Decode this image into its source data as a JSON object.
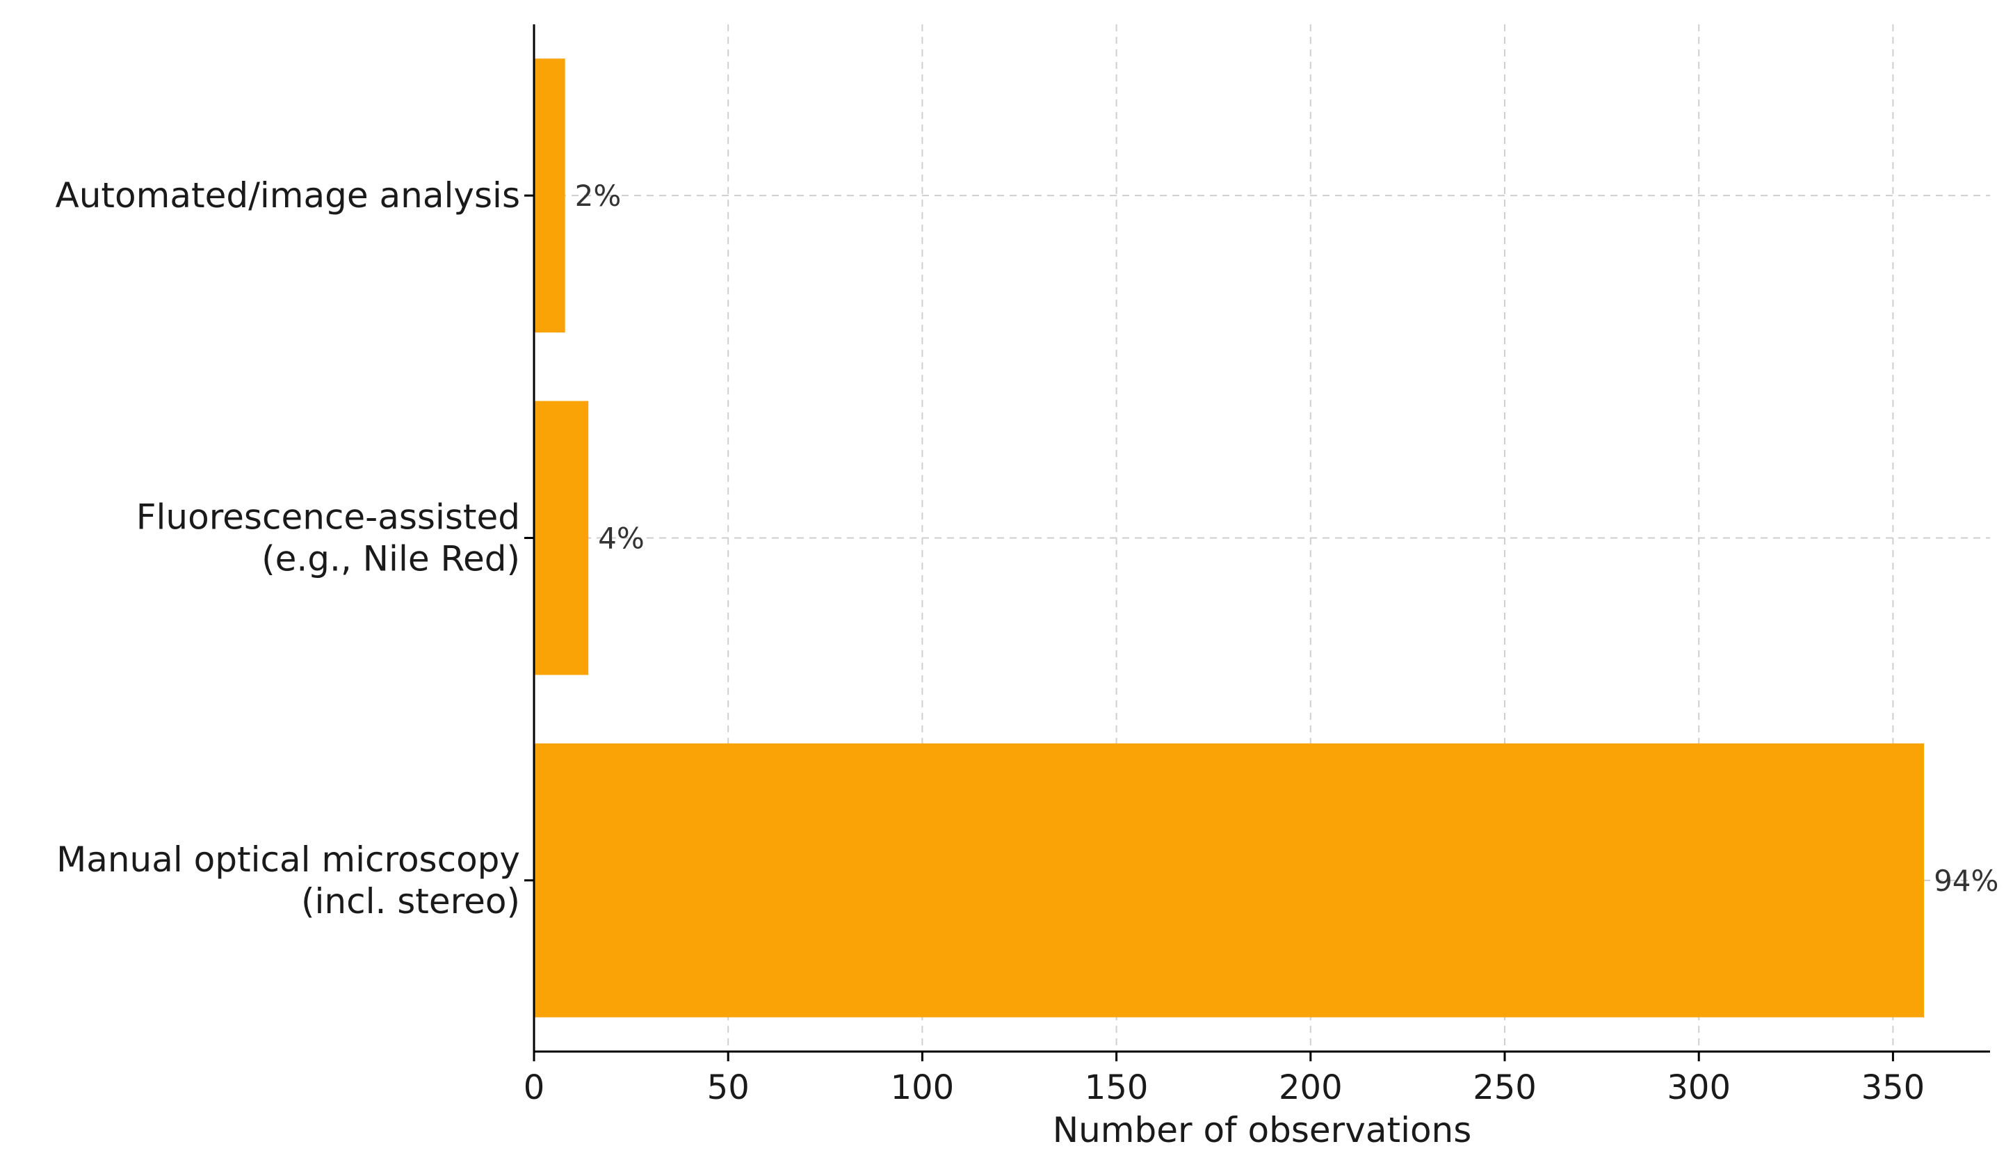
{
  "chart_data": {
    "type": "bar",
    "orientation": "horizontal",
    "categories": [
      [
        "Manual optical microscopy",
        "(incl. stereo)"
      ],
      [
        "Fluorescence-assisted",
        "(e.g., Nile Red)"
      ],
      [
        "Automated/image analysis"
      ]
    ],
    "values": [
      358,
      14,
      8
    ],
    "data_labels": [
      "94%",
      "4%",
      "2%"
    ],
    "xlabel": "Number of observations",
    "ylabel": "",
    "title": "",
    "xlim": [
      0,
      375
    ],
    "xticks": [
      0,
      50,
      100,
      150,
      200,
      250,
      300,
      350
    ],
    "grid": true,
    "bar_color": "#FAA307"
  }
}
